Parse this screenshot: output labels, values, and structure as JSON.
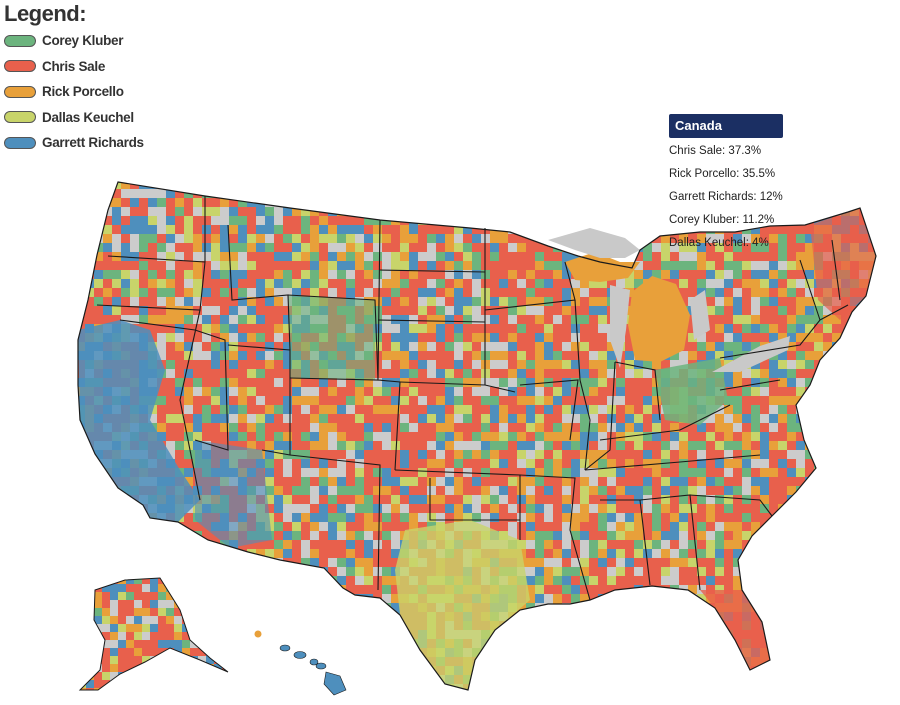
{
  "legend": {
    "title": "Legend:",
    "items": [
      {
        "label": "Corey Kluber",
        "color": "#6cb47e"
      },
      {
        "label": "Chris Sale",
        "color": "#e8604c"
      },
      {
        "label": "Rick Porcello",
        "color": "#e8a03a"
      },
      {
        "label": "Dallas Keuchel",
        "color": "#c8d46a"
      },
      {
        "label": "Garrett Richards",
        "color": "#4e8fbd"
      }
    ],
    "no_data_color": "#cccccc"
  },
  "tooltip": {
    "title": "Canada",
    "rows": [
      "Chris Sale: 37.3%",
      "Rick Porcello: 35.5%",
      "Garrett Richards: 12%",
      "Corey Kluber: 11.2%",
      "Dallas Keuchel: 4%"
    ]
  },
  "map": {
    "region_leaders": {
      "pacific_coast": "Garrett Richards",
      "texas": "Dallas Keuchel",
      "michigan": "Rick Porcello",
      "ohio": "Corey Kluber",
      "florida": "Chris Sale",
      "new_england": "Chris Sale"
    }
  }
}
